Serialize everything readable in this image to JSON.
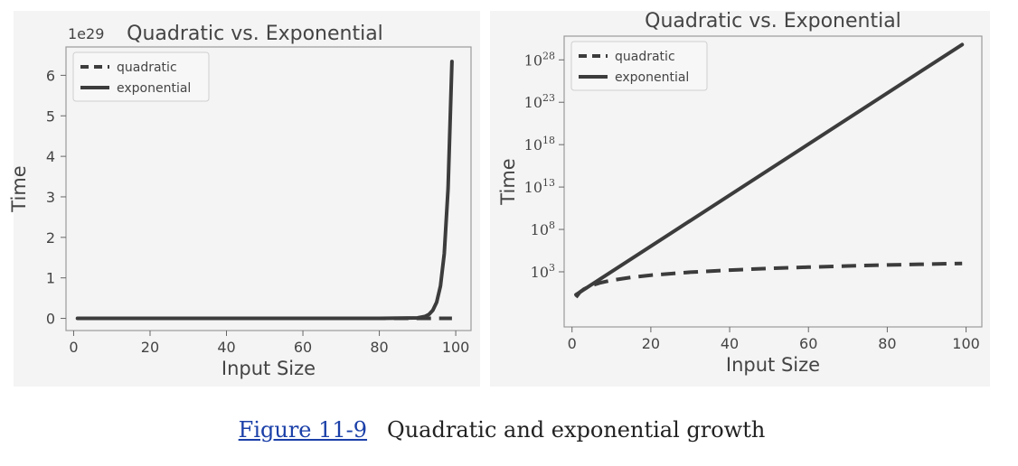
{
  "caption": {
    "link_text": "Figure 11-9",
    "text": "Quadratic and exponential growth"
  },
  "chart_data": [
    {
      "type": "line",
      "title": "Quadratic vs. Exponential",
      "xlabel": "Input Size",
      "ylabel": "Time",
      "y_scale": "linear",
      "offset_text": "1e29",
      "xlim": [
        -2,
        104
      ],
      "ylim": [
        -0.3,
        6.7
      ],
      "x_ticks": [
        0,
        20,
        40,
        60,
        80,
        100
      ],
      "y_ticks": [
        0,
        1,
        2,
        3,
        4,
        5,
        6
      ],
      "legend": "top-left",
      "background": "#f4f4f4",
      "series": [
        {
          "name": "quadratic",
          "style": "dashed",
          "color": "#3c3c3c",
          "x": [
            1,
            20,
            40,
            60,
            80,
            92,
            95,
            99
          ],
          "y": [
            0,
            0,
            0,
            0,
            0,
            0,
            0,
            0
          ]
        },
        {
          "name": "exponential",
          "style": "solid",
          "color": "#3c3c3c",
          "x": [
            1,
            20,
            40,
            60,
            80,
            90,
            92,
            93,
            94,
            95,
            96,
            97,
            98,
            99
          ],
          "y": [
            0,
            0,
            0,
            0,
            0,
            0.012,
            0.05,
            0.1,
            0.2,
            0.4,
            0.8,
            1.6,
            3.2,
            6.34
          ]
        }
      ]
    },
    {
      "type": "line",
      "title": "Quadratic vs. Exponential",
      "xlabel": "Input Size",
      "ylabel": "Time",
      "y_scale": "log",
      "xlim": [
        -2,
        104
      ],
      "ylim_exp": [
        -3.5,
        30.8
      ],
      "x_ticks": [
        0,
        20,
        40,
        60,
        80,
        100
      ],
      "y_tick_exponents": [
        3,
        8,
        13,
        18,
        23,
        28
      ],
      "legend": "top-left",
      "background": "#f4f4f4",
      "series": [
        {
          "name": "quadratic",
          "style": "dashed",
          "color": "#3c3c3c",
          "x": [
            1,
            2,
            3,
            5,
            7,
            10,
            15,
            20,
            30,
            40,
            50,
            60,
            70,
            80,
            90,
            99
          ],
          "y": [
            1,
            4,
            9,
            25,
            49,
            100,
            225,
            400,
            900,
            1600,
            2500,
            3600,
            4900,
            6400,
            8100,
            9801
          ]
        },
        {
          "name": "exponential",
          "style": "solid",
          "color": "#3c3c3c",
          "x": [
            1,
            99
          ],
          "y": [
            2,
            6.338e+29
          ]
        }
      ]
    }
  ]
}
